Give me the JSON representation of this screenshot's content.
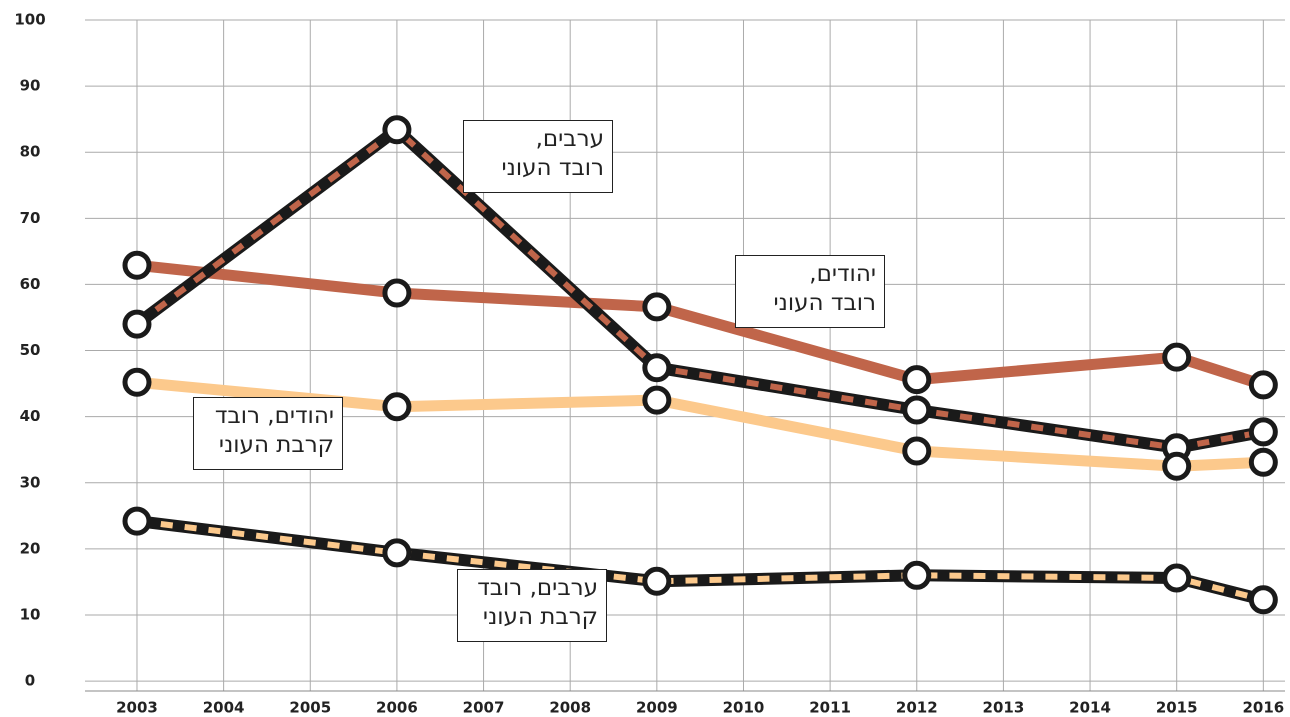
{
  "chart_data": {
    "type": "line",
    "x": [
      2003,
      2006,
      2009,
      2012,
      2015,
      2016
    ],
    "series": [
      {
        "name": "יהודים,\nרובד העוני",
        "color": "#c0654a",
        "values": [
          62.9,
          58.7,
          56.6,
          45.6,
          49.0,
          44.8
        ]
      },
      {
        "name": "ערבים,\nרובד העוני",
        "color": "#1a1a1a",
        "dash_color": "#c0654a",
        "values": [
          54.0,
          83.4,
          47.4,
          41.0,
          35.3,
          37.7
        ]
      },
      {
        "name": "יהודים, רובד\nקרבת העוני",
        "color": "#fcc98c",
        "values": [
          45.2,
          41.5,
          42.5,
          34.8,
          32.5,
          33.1
        ]
      },
      {
        "name": "ערבים, רובד\nקרבת העוני",
        "color": "#1a1a1a",
        "dash_color": "#fcc98c",
        "values": [
          24.2,
          19.4,
          15.1,
          16.0,
          15.6,
          12.3
        ]
      }
    ],
    "xlim": [
      2002.4,
      2016.25
    ],
    "xticks": [
      2003,
      2004,
      2005,
      2006,
      2007,
      2008,
      2009,
      2010,
      2011,
      2012,
      2013,
      2014,
      2015,
      2016
    ],
    "ylim": [
      -1.5,
      100
    ],
    "yticks": [
      0,
      10,
      20,
      30,
      40,
      50,
      60,
      70,
      80,
      90,
      100
    ],
    "grid": true
  }
}
